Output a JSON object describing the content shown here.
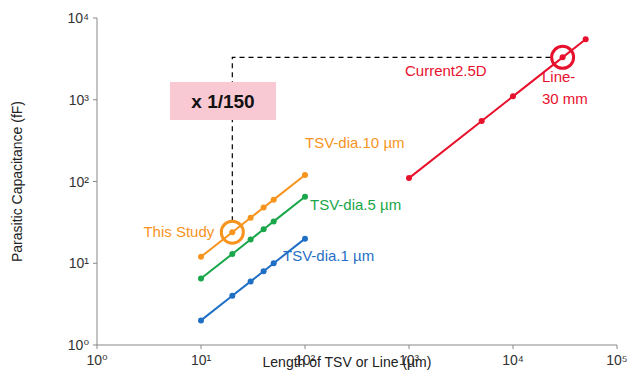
{
  "chart_data": {
    "type": "line",
    "log": true,
    "grid": false,
    "marker": "circle",
    "x_label": "Length of TSV or Line (µm)",
    "y_label": "Parasitic Capacitance (fF)",
    "xlim": [
      1,
      100000
    ],
    "ylim": [
      1,
      10000
    ],
    "xticks": [
      {
        "value": 1,
        "label": "10⁰"
      },
      {
        "value": 10,
        "label": "10¹"
      },
      {
        "value": 100,
        "label": "10²"
      },
      {
        "value": 1000,
        "label": "10³"
      },
      {
        "value": 10000,
        "label": "10⁴"
      },
      {
        "value": 100000,
        "label": "10⁵"
      }
    ],
    "yticks": [
      {
        "value": 1,
        "label": "10⁰"
      },
      {
        "value": 10,
        "label": "10¹"
      },
      {
        "value": 100,
        "label": "10²"
      },
      {
        "value": 1000,
        "label": "10³"
      },
      {
        "value": 10000,
        "label": "10⁴"
      }
    ],
    "series": [
      {
        "name": "Current2.5D",
        "color": "#e8112d",
        "x": [
          1000,
          5000,
          10000,
          30000,
          50000
        ],
        "values": [
          110,
          550,
          1100,
          3300,
          5500
        ]
      },
      {
        "name": "TSV-dia.10 µm",
        "color": "#f7941d",
        "x": [
          10,
          20,
          30,
          40,
          50,
          100
        ],
        "values": [
          12,
          24,
          36,
          48,
          60,
          120
        ]
      },
      {
        "name": "TSV-dia.5 µm",
        "color": "#1aa64a",
        "x": [
          10,
          20,
          30,
          40,
          50,
          100
        ],
        "values": [
          6.5,
          13,
          19.5,
          26,
          32.5,
          65
        ]
      },
      {
        "name": "TSV-dia.1 µm",
        "color": "#1f6fc5",
        "x": [
          10,
          20,
          30,
          40,
          50,
          100
        ],
        "values": [
          2,
          4,
          6,
          8,
          10,
          20
        ]
      }
    ],
    "annotations": [
      {
        "text": "x 1/150"
      },
      {
        "text": "This Study"
      },
      {
        "lines": [
          "Line-",
          "30 mm"
        ]
      }
    ]
  }
}
